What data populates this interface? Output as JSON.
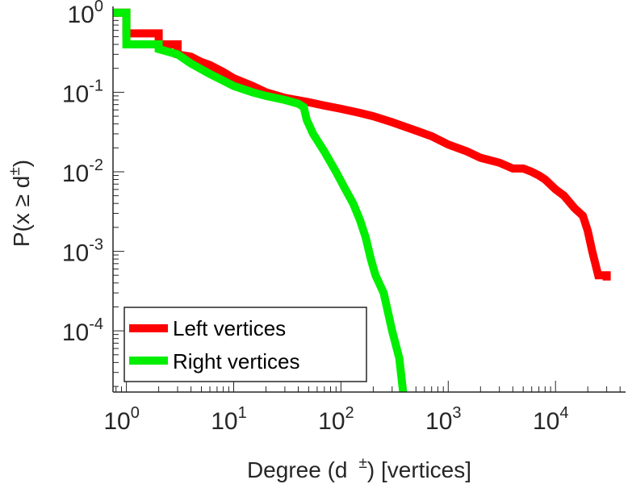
{
  "chart_data": {
    "type": "line",
    "title": "",
    "xlabel": {
      "main": "Degree (d",
      "sup": "±",
      "suffix": ") [vertices]"
    },
    "ylabel": {
      "main": "P(x ≥ d",
      "sup": "±",
      "suffix": ")"
    },
    "xscale": "log",
    "yscale": "log",
    "xlim": [
      0.75,
      45000
    ],
    "ylim": [
      1.7e-05,
      1.2
    ],
    "grid": false,
    "legend": "bottom-left",
    "xticks": [
      {
        "value": 1,
        "base": "10",
        "exp": "0"
      },
      {
        "value": 10,
        "base": "10",
        "exp": "1"
      },
      {
        "value": 100,
        "base": "10",
        "exp": "2"
      },
      {
        "value": 1000,
        "base": "10",
        "exp": "3"
      },
      {
        "value": 10000,
        "base": "10",
        "exp": "4"
      }
    ],
    "yticks": [
      {
        "value": 1,
        "base": "10",
        "exp": "0"
      },
      {
        "value": 0.1,
        "base": "10",
        "exp": "-1"
      },
      {
        "value": 0.01,
        "base": "10",
        "exp": "-2"
      },
      {
        "value": 0.001,
        "base": "10",
        "exp": "-3"
      },
      {
        "value": 0.0001,
        "base": "10",
        "exp": "-4"
      }
    ],
    "series": [
      {
        "name": "Left vertices",
        "color": "#ff0000",
        "points": [
          [
            0.75,
            1
          ],
          [
            1,
            1
          ],
          [
            1,
            0.55
          ],
          [
            2,
            0.55
          ],
          [
            2,
            0.4
          ],
          [
            3,
            0.4
          ],
          [
            3,
            0.3
          ],
          [
            4,
            0.28
          ],
          [
            5,
            0.24
          ],
          [
            6,
            0.22
          ],
          [
            8,
            0.18
          ],
          [
            10,
            0.15
          ],
          [
            15,
            0.12
          ],
          [
            20,
            0.1
          ],
          [
            30,
            0.085
          ],
          [
            50,
            0.075
          ],
          [
            70,
            0.068
          ],
          [
            100,
            0.062
          ],
          [
            150,
            0.055
          ],
          [
            200,
            0.05
          ],
          [
            300,
            0.042
          ],
          [
            500,
            0.033
          ],
          [
            700,
            0.028
          ],
          [
            1000,
            0.022
          ],
          [
            1500,
            0.018
          ],
          [
            2000,
            0.015
          ],
          [
            3000,
            0.013
          ],
          [
            4000,
            0.011
          ],
          [
            5000,
            0.011
          ],
          [
            6000,
            0.01
          ],
          [
            7000,
            0.009
          ],
          [
            8000,
            0.008
          ],
          [
            10000,
            0.006
          ],
          [
            12000,
            0.005
          ],
          [
            15000,
            0.0035
          ],
          [
            18000,
            0.0028
          ],
          [
            20000,
            0.0018
          ],
          [
            22000,
            0.001
          ],
          [
            25000,
            0.0005
          ],
          [
            30000,
            0.0005
          ],
          [
            30000,
            0.00043
          ]
        ]
      },
      {
        "name": "Right vertices",
        "color": "#00ee00",
        "points": [
          [
            0.75,
            1
          ],
          [
            1,
            1
          ],
          [
            1,
            0.4
          ],
          [
            2,
            0.4
          ],
          [
            2,
            0.35
          ],
          [
            3,
            0.3
          ],
          [
            4,
            0.23
          ],
          [
            6,
            0.17
          ],
          [
            8,
            0.14
          ],
          [
            10,
            0.12
          ],
          [
            15,
            0.1
          ],
          [
            20,
            0.09
          ],
          [
            30,
            0.08
          ],
          [
            40,
            0.072
          ],
          [
            45,
            0.065
          ],
          [
            48,
            0.045
          ],
          [
            55,
            0.03
          ],
          [
            70,
            0.018
          ],
          [
            90,
            0.01
          ],
          [
            110,
            0.006
          ],
          [
            130,
            0.004
          ],
          [
            150,
            0.0025
          ],
          [
            170,
            0.0015
          ],
          [
            190,
            0.0008
          ],
          [
            210,
            0.0005
          ],
          [
            250,
            0.0003
          ],
          [
            300,
            0.0001
          ],
          [
            350,
            4.5e-05
          ],
          [
            380,
            1.7e-05
          ]
        ]
      }
    ]
  }
}
